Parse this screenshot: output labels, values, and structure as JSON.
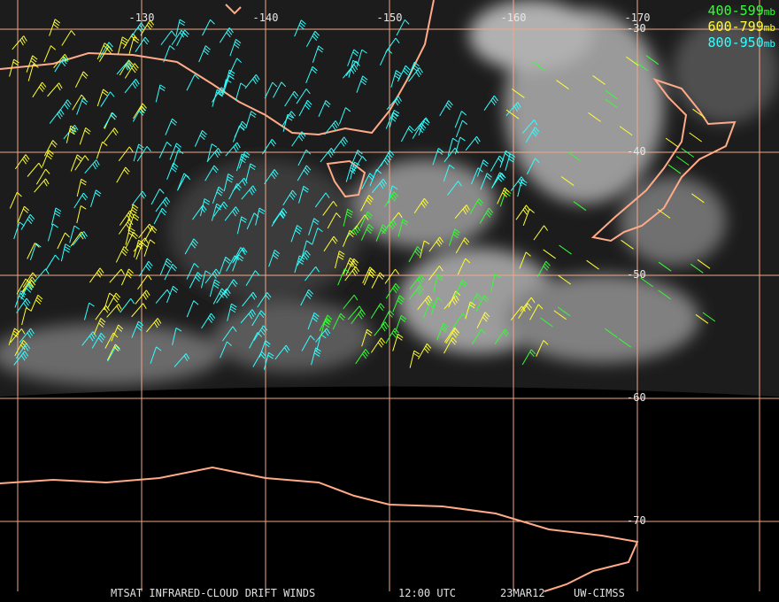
{
  "map": {
    "longitudes": [
      -130,
      -140,
      -150,
      -160,
      -170
    ],
    "latitudes": [
      -30,
      -40,
      -50,
      -60,
      -70
    ],
    "legend": [
      {
        "range": "400-599",
        "unit": "mb",
        "color": "#33ff33"
      },
      {
        "range": "600-799",
        "unit": "mb",
        "color": "#ffff33"
      },
      {
        "range": "800-950",
        "unit": "mb",
        "color": "#33ffff"
      }
    ],
    "footer": {
      "product": "MTSAT INFRARED-CLOUD DRIFT WINDS",
      "time": "12:00 UTC",
      "date": "23MAR12",
      "source": "UW-CIMSS"
    }
  }
}
